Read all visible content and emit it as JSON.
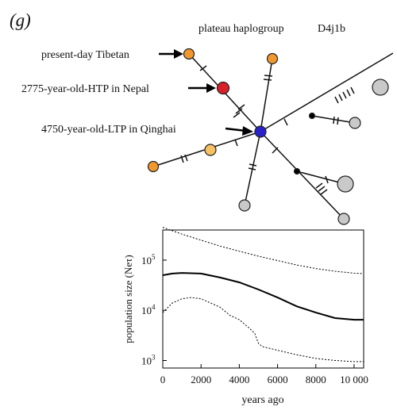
{
  "panel_label": "(g)",
  "network": {
    "title": "plateau haplogroup",
    "haplogroup": "D4j1b",
    "annotations": [
      {
        "id": "tibetan",
        "text": "present-day Tibetan"
      },
      {
        "id": "htp",
        "text": "2775-year-old-HTP in Nepal"
      },
      {
        "id": "ltp",
        "text": "4750-year-old-LTP in Qinghai"
      }
    ],
    "colors": {
      "present_day_tibetan": "#f0982f",
      "ancient_htp": "#d81f2a",
      "ancient_ltp": "#2a22c8",
      "light_orange": "#f7c163",
      "other": "#c9c9c9",
      "median_vector": "#000000"
    }
  },
  "chart_data": {
    "type": "line",
    "xlabel": "years ago",
    "ylabel": "population size (Neτ)",
    "xlim": [
      0,
      10500
    ],
    "ylim_log10": [
      2.85,
      5.6
    ],
    "scale": "log-y",
    "x_ticks": [
      "0",
      "2000",
      "4000",
      "6000",
      "8000",
      "10 000"
    ],
    "y_ticks": [
      {
        "base": "10",
        "exp": "5",
        "value": 100000
      },
      {
        "base": "10",
        "exp": "4",
        "value": 10000
      },
      {
        "base": "10",
        "exp": "3",
        "value": 1000
      }
    ],
    "series": [
      {
        "style": "dotted-upper",
        "x": [
          0,
          1000,
          2000,
          3000,
          4000,
          5000,
          6000,
          7000,
          8000,
          9000,
          10000,
          10500
        ],
        "y": [
          450000,
          330000,
          250000,
          190000,
          150000,
          120000,
          98000,
          80000,
          68000,
          60000,
          55000,
          54000
        ]
      },
      {
        "style": "solid-median",
        "x": [
          0,
          500,
          1000,
          2000,
          3000,
          4000,
          5000,
          6000,
          7000,
          8000,
          9000,
          10000,
          10500
        ],
        "y": [
          50000,
          54000,
          55500,
          54000,
          45000,
          36000,
          26000,
          18000,
          12000,
          9000,
          7000,
          6500,
          6500
        ]
      },
      {
        "style": "dotted-lower",
        "x": [
          0,
          500,
          1000,
          1500,
          2000,
          2500,
          3000,
          3500,
          4000,
          4500,
          4800,
          5000,
          5200,
          6000,
          7000,
          8000,
          9000,
          10000,
          10500
        ],
        "y": [
          9000,
          14000,
          17000,
          18000,
          17000,
          14000,
          11500,
          8000,
          6500,
          4500,
          3500,
          2200,
          1900,
          1600,
          1300,
          1100,
          1000,
          950,
          950
        ]
      }
    ]
  }
}
